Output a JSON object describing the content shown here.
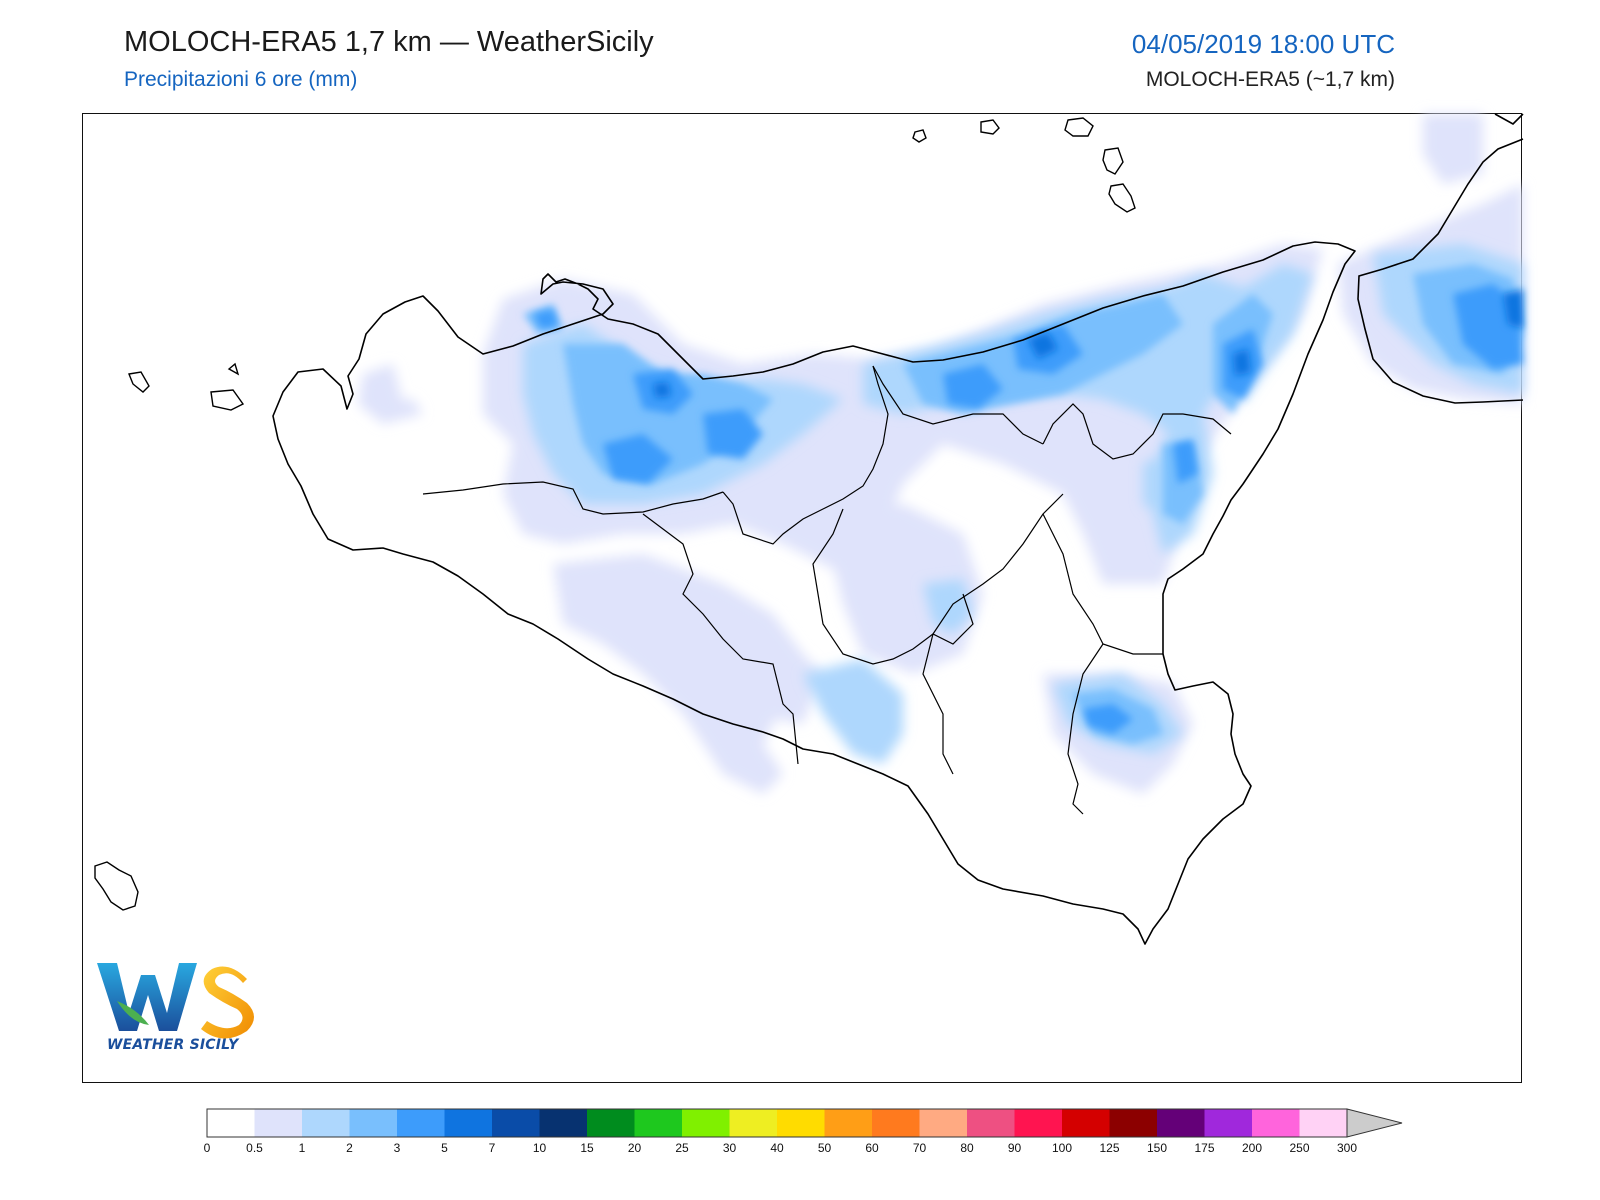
{
  "header": {
    "title": "MOLOCH-ERA5 1,7 km — WeatherSicily",
    "subtitle": "Precipitazioni 6 ore (mm)",
    "datetime": "04/05/2019 18:00 UTC",
    "model": "MOLOCH-ERA5 (~1,7 km)"
  },
  "logo": {
    "letters": "WS",
    "text": "WEATHER SICILY"
  },
  "legend": {
    "thresholds": [
      "0",
      "0.5",
      "1",
      "2",
      "3",
      "5",
      "7",
      "10",
      "15",
      "20",
      "25",
      "30",
      "40",
      "50",
      "60",
      "70",
      "80",
      "90",
      "100",
      "125",
      "150",
      "175",
      "200",
      "250",
      "300"
    ],
    "colors": [
      "#ffffff",
      "#dfe3fb",
      "#aed7fd",
      "#79bffd",
      "#3d9cfb",
      "#0f74e0",
      "#0a4ca8",
      "#073270",
      "#008c1e",
      "#1ec81e",
      "#80f000",
      "#eeee22",
      "#ffdc00",
      "#ff9e16",
      "#ff7a1e",
      "#ffaa82",
      "#ee5082",
      "#ff1450",
      "#d40000",
      "#8c0000",
      "#640078",
      "#a028dc",
      "#ff64dc",
      "#ffd2f5"
    ],
    "extend_color": "#cccccc"
  },
  "map": {
    "region": "Sicilia",
    "land_color": "#ffffff",
    "coast_color": "#000000"
  }
}
